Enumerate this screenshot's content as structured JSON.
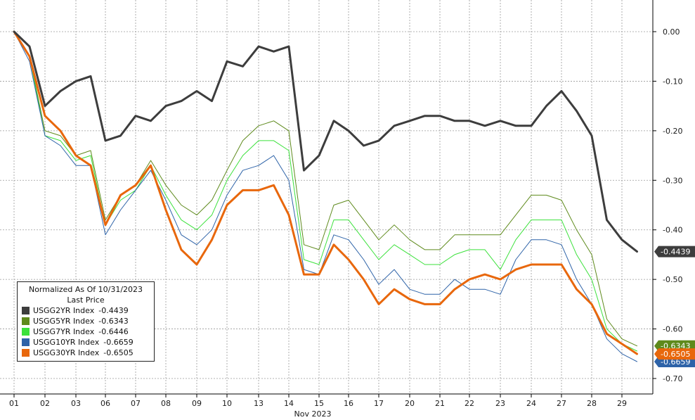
{
  "chart_data": {
    "type": "line",
    "title": "",
    "subtitle": "",
    "xlabel": "Nov 2023",
    "ylabel": "",
    "x_tick_labels": [
      "01",
      "02",
      "03",
      "06",
      "07",
      "08",
      "09",
      "10",
      "13",
      "14",
      "15",
      "16",
      "17",
      "20",
      "21",
      "22",
      "23",
      "24",
      "27",
      "28",
      "29"
    ],
    "y_ticks": [
      0.0,
      -0.1,
      -0.2,
      -0.3,
      -0.4,
      -0.5,
      -0.6,
      -0.7
    ],
    "y_tick_labels": [
      "0.00",
      "-0.10",
      "-0.20",
      "-0.30",
      "-0.40",
      "-0.50",
      "-0.60",
      "-0.70"
    ],
    "ylim": [
      -0.7,
      0.0
    ],
    "grid": true,
    "legend": {
      "placement": "bottom-left",
      "header": [
        "Normalized As Of 10/31/2023",
        "Last Price"
      ]
    },
    "series": [
      {
        "name": "USGG2YR Index",
        "color": "#3d3d3d",
        "last_value": "-0.4439",
        "last_label": "-0.4439",
        "points": [
          [
            0,
            0
          ],
          [
            0.5,
            -0.03
          ],
          [
            1,
            -0.15
          ],
          [
            1.5,
            -0.12
          ],
          [
            2,
            -0.1
          ],
          [
            2.5,
            -0.09
          ],
          [
            3,
            -0.22
          ],
          [
            3.5,
            -0.21
          ],
          [
            4,
            -0.17
          ],
          [
            4.5,
            -0.18
          ],
          [
            5,
            -0.15
          ],
          [
            5.5,
            -0.14
          ],
          [
            6,
            -0.12
          ],
          [
            6.5,
            -0.14
          ],
          [
            7,
            -0.06
          ],
          [
            7.5,
            -0.07
          ],
          [
            8,
            -0.03
          ],
          [
            8.5,
            -0.04
          ],
          [
            9,
            -0.03
          ],
          [
            9.5,
            -0.28
          ],
          [
            10,
            -0.25
          ],
          [
            10.5,
            -0.18
          ],
          [
            11,
            -0.2
          ],
          [
            11.5,
            -0.23
          ],
          [
            12,
            -0.22
          ],
          [
            12.5,
            -0.19
          ],
          [
            13,
            -0.18
          ],
          [
            13.5,
            -0.17
          ],
          [
            14,
            -0.17
          ],
          [
            14.5,
            -0.18
          ],
          [
            15,
            -0.18
          ],
          [
            15.5,
            -0.19
          ],
          [
            16,
            -0.18
          ],
          [
            16.5,
            -0.19
          ],
          [
            17,
            -0.19
          ],
          [
            17.5,
            -0.15
          ],
          [
            18,
            -0.12
          ],
          [
            18.5,
            -0.16
          ],
          [
            19,
            -0.21
          ],
          [
            19.5,
            -0.38
          ],
          [
            20,
            -0.42
          ],
          [
            20.5,
            -0.4439
          ]
        ]
      },
      {
        "name": "USGG5YR Index",
        "color": "#5e8a1c",
        "last_value": "-0.6343",
        "last_label": "-0.6343",
        "points": [
          [
            0,
            0
          ],
          [
            0.5,
            -0.05
          ],
          [
            1,
            -0.2
          ],
          [
            1.5,
            -0.21
          ],
          [
            2,
            -0.25
          ],
          [
            2.5,
            -0.24
          ],
          [
            3,
            -0.38
          ],
          [
            3.5,
            -0.33
          ],
          [
            4,
            -0.31
          ],
          [
            4.5,
            -0.26
          ],
          [
            5,
            -0.31
          ],
          [
            5.5,
            -0.35
          ],
          [
            6,
            -0.37
          ],
          [
            6.5,
            -0.34
          ],
          [
            7,
            -0.28
          ],
          [
            7.5,
            -0.22
          ],
          [
            8,
            -0.19
          ],
          [
            8.5,
            -0.18
          ],
          [
            9,
            -0.2
          ],
          [
            9.5,
            -0.43
          ],
          [
            10,
            -0.44
          ],
          [
            10.5,
            -0.35
          ],
          [
            11,
            -0.34
          ],
          [
            11.5,
            -0.38
          ],
          [
            12,
            -0.42
          ],
          [
            12.5,
            -0.39
          ],
          [
            13,
            -0.42
          ],
          [
            13.5,
            -0.44
          ],
          [
            14,
            -0.44
          ],
          [
            14.5,
            -0.41
          ],
          [
            15,
            -0.41
          ],
          [
            15.5,
            -0.41
          ],
          [
            16,
            -0.41
          ],
          [
            16.5,
            -0.37
          ],
          [
            17,
            -0.33
          ],
          [
            17.5,
            -0.33
          ],
          [
            18,
            -0.34
          ],
          [
            18.5,
            -0.4
          ],
          [
            19,
            -0.45
          ],
          [
            19.5,
            -0.58
          ],
          [
            20,
            -0.62
          ],
          [
            20.5,
            -0.6343
          ]
        ]
      },
      {
        "name": "USGG7YR Index",
        "color": "#3be13b",
        "last_value": "-0.6446",
        "last_label": "",
        "points": [
          [
            0,
            0
          ],
          [
            0.5,
            -0.05
          ],
          [
            1,
            -0.21
          ],
          [
            1.5,
            -0.22
          ],
          [
            2,
            -0.26
          ],
          [
            2.5,
            -0.25
          ],
          [
            3,
            -0.39
          ],
          [
            3.5,
            -0.34
          ],
          [
            4,
            -0.32
          ],
          [
            4.5,
            -0.27
          ],
          [
            5,
            -0.33
          ],
          [
            5.5,
            -0.38
          ],
          [
            6,
            -0.4
          ],
          [
            6.5,
            -0.37
          ],
          [
            7,
            -0.3
          ],
          [
            7.5,
            -0.25
          ],
          [
            8,
            -0.22
          ],
          [
            8.5,
            -0.22
          ],
          [
            9,
            -0.24
          ],
          [
            9.5,
            -0.46
          ],
          [
            10,
            -0.47
          ],
          [
            10.5,
            -0.38
          ],
          [
            11,
            -0.38
          ],
          [
            11.5,
            -0.42
          ],
          [
            12,
            -0.46
          ],
          [
            12.5,
            -0.43
          ],
          [
            13,
            -0.45
          ],
          [
            13.5,
            -0.47
          ],
          [
            14,
            -0.47
          ],
          [
            14.5,
            -0.45
          ],
          [
            15,
            -0.44
          ],
          [
            15.5,
            -0.44
          ],
          [
            16,
            -0.48
          ],
          [
            16.5,
            -0.42
          ],
          [
            17,
            -0.38
          ],
          [
            17.5,
            -0.38
          ],
          [
            18,
            -0.38
          ],
          [
            18.5,
            -0.45
          ],
          [
            19,
            -0.5
          ],
          [
            19.5,
            -0.6
          ],
          [
            20,
            -0.63
          ],
          [
            20.5,
            -0.6446
          ]
        ]
      },
      {
        "name": "USGG10YR Index",
        "color": "#2e63a8",
        "last_value": "-0.6659",
        "last_label": "-0.6659",
        "points": [
          [
            0,
            0
          ],
          [
            0.5,
            -0.06
          ],
          [
            1,
            -0.21
          ],
          [
            1.5,
            -0.23
          ],
          [
            2,
            -0.27
          ],
          [
            2.5,
            -0.27
          ],
          [
            3,
            -0.41
          ],
          [
            3.5,
            -0.36
          ],
          [
            4,
            -0.32
          ],
          [
            4.5,
            -0.28
          ],
          [
            5,
            -0.34
          ],
          [
            5.5,
            -0.41
          ],
          [
            6,
            -0.43
          ],
          [
            6.5,
            -0.4
          ],
          [
            7,
            -0.33
          ],
          [
            7.5,
            -0.28
          ],
          [
            8,
            -0.27
          ],
          [
            8.5,
            -0.25
          ],
          [
            9,
            -0.3
          ],
          [
            9.5,
            -0.48
          ],
          [
            10,
            -0.49
          ],
          [
            10.5,
            -0.41
          ],
          [
            11,
            -0.42
          ],
          [
            11.5,
            -0.46
          ],
          [
            12,
            -0.51
          ],
          [
            12.5,
            -0.48
          ],
          [
            13,
            -0.52
          ],
          [
            13.5,
            -0.53
          ],
          [
            14,
            -0.53
          ],
          [
            14.5,
            -0.5
          ],
          [
            15,
            -0.52
          ],
          [
            15.5,
            -0.52
          ],
          [
            16,
            -0.53
          ],
          [
            16.5,
            -0.46
          ],
          [
            17,
            -0.42
          ],
          [
            17.5,
            -0.42
          ],
          [
            18,
            -0.43
          ],
          [
            18.5,
            -0.5
          ],
          [
            19,
            -0.55
          ],
          [
            19.5,
            -0.62
          ],
          [
            20,
            -0.65
          ],
          [
            20.5,
            -0.6659
          ]
        ]
      },
      {
        "name": "USGG30YR Index",
        "color": "#e8670c",
        "last_value": "-0.6505",
        "last_label": "-0.6505",
        "points": [
          [
            0,
            0
          ],
          [
            0.5,
            -0.05
          ],
          [
            1,
            -0.17
          ],
          [
            1.5,
            -0.2
          ],
          [
            2,
            -0.25
          ],
          [
            2.5,
            -0.27
          ],
          [
            3,
            -0.39
          ],
          [
            3.5,
            -0.33
          ],
          [
            4,
            -0.31
          ],
          [
            4.5,
            -0.27
          ],
          [
            5,
            -0.36
          ],
          [
            5.5,
            -0.44
          ],
          [
            6,
            -0.47
          ],
          [
            6.5,
            -0.42
          ],
          [
            7,
            -0.35
          ],
          [
            7.5,
            -0.32
          ],
          [
            8,
            -0.32
          ],
          [
            8.5,
            -0.31
          ],
          [
            9,
            -0.37
          ],
          [
            9.5,
            -0.49
          ],
          [
            10,
            -0.49
          ],
          [
            10.5,
            -0.43
          ],
          [
            11,
            -0.46
          ],
          [
            11.5,
            -0.5
          ],
          [
            12,
            -0.55
          ],
          [
            12.5,
            -0.52
          ],
          [
            13,
            -0.54
          ],
          [
            13.5,
            -0.55
          ],
          [
            14,
            -0.55
          ],
          [
            14.5,
            -0.52
          ],
          [
            15,
            -0.5
          ],
          [
            15.5,
            -0.49
          ],
          [
            16,
            -0.5
          ],
          [
            16.5,
            -0.48
          ],
          [
            17,
            -0.47
          ],
          [
            17.5,
            -0.47
          ],
          [
            18,
            -0.47
          ],
          [
            18.5,
            -0.52
          ],
          [
            19,
            -0.55
          ],
          [
            19.5,
            -0.61
          ],
          [
            20,
            -0.63
          ],
          [
            20.5,
            -0.6505
          ]
        ]
      }
    ]
  }
}
